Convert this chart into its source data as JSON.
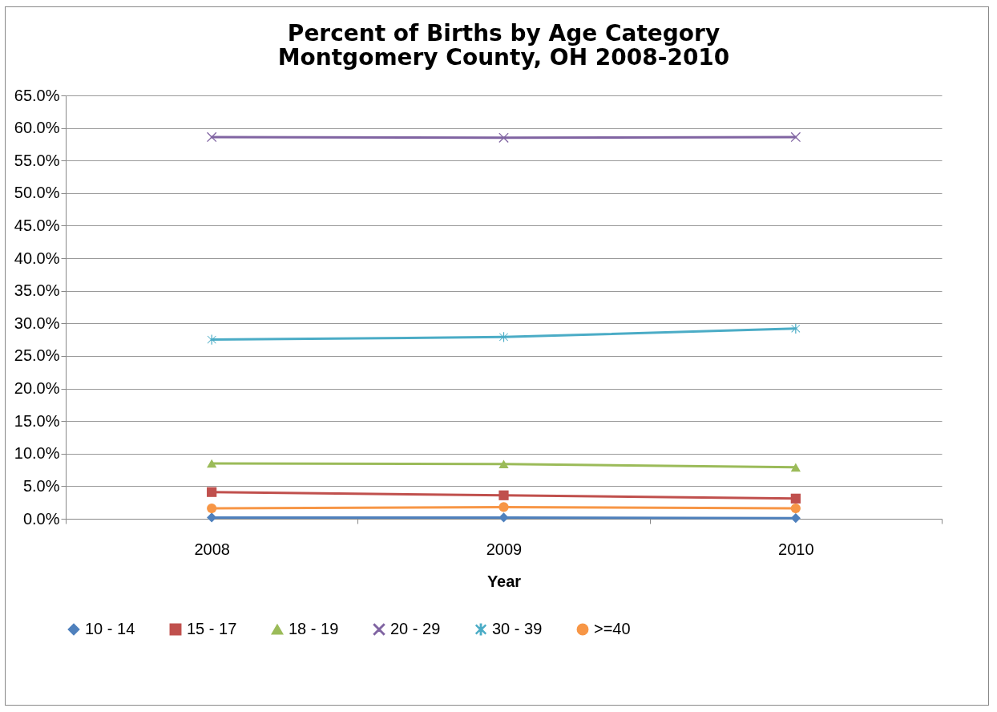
{
  "chart_data": {
    "type": "line",
    "title": "Percent of Births by Age Category\nMontgomery County, OH  2008-2010",
    "xlabel": "Year",
    "categories": [
      "2008",
      "2009",
      "2010"
    ],
    "ylim": [
      0,
      65
    ],
    "yticks": [
      {
        "value": 0,
        "label": "0.0%"
      },
      {
        "value": 5,
        "label": "5.0%"
      },
      {
        "value": 10,
        "label": "10.0%"
      },
      {
        "value": 15,
        "label": "15.0%"
      },
      {
        "value": 20,
        "label": "20.0%"
      },
      {
        "value": 25,
        "label": "25.0%"
      },
      {
        "value": 30,
        "label": "30.0%"
      },
      {
        "value": 35,
        "label": "35.0%"
      },
      {
        "value": 40,
        "label": "40.0%"
      },
      {
        "value": 45,
        "label": "45.0%"
      },
      {
        "value": 50,
        "label": "50.0%"
      },
      {
        "value": 55,
        "label": "55.0%"
      },
      {
        "value": 60,
        "label": "60.0%"
      },
      {
        "value": 65,
        "label": "65.0%"
      }
    ],
    "grid": "y",
    "legend": "bottom",
    "series": [
      {
        "name": "10 - 14",
        "color": "#4f81bd",
        "marker": "diamond",
        "values": [
          0.2,
          0.2,
          0.1
        ]
      },
      {
        "name": "15 - 17",
        "color": "#c0504d",
        "marker": "square",
        "values": [
          4.1,
          3.6,
          3.1
        ]
      },
      {
        "name": "18 - 19",
        "color": "#9bbb59",
        "marker": "triangle",
        "values": [
          8.5,
          8.4,
          7.9
        ]
      },
      {
        "name": "20 - 29",
        "color": "#8064a2",
        "marker": "cross",
        "values": [
          58.6,
          58.5,
          58.6
        ]
      },
      {
        "name": "30 - 39",
        "color": "#4bacc6",
        "marker": "star",
        "values": [
          27.5,
          27.9,
          29.2
        ]
      },
      {
        "name": ">=40",
        "color": "#f79646",
        "marker": "circle",
        "values": [
          1.6,
          1.8,
          1.6
        ]
      }
    ]
  }
}
